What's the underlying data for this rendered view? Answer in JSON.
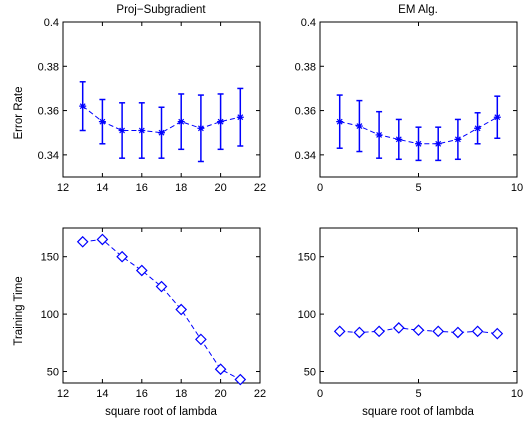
{
  "chart_data": [
    {
      "type": "line",
      "title": "Proj−Subgradient",
      "xlabel": "",
      "ylabel": "Error Rate",
      "xlim": [
        12,
        22
      ],
      "ylim": [
        0.33,
        0.4
      ],
      "xticks": [
        12,
        14,
        16,
        18,
        20,
        22
      ],
      "yticks": [
        0.34,
        0.36,
        0.38,
        0.4
      ],
      "xtick_labels": [
        "12",
        "14",
        "16",
        "18",
        "20",
        "22"
      ],
      "ytick_labels": [
        "0.34",
        "0.36",
        "0.38",
        "0.4"
      ],
      "grid": false,
      "marker": "asterisk",
      "line_style": "dashed",
      "color": "#0000ff",
      "x": [
        13,
        14,
        15,
        16,
        17,
        18,
        19,
        20,
        21
      ],
      "y": [
        0.362,
        0.355,
        0.351,
        0.351,
        0.35,
        0.355,
        0.352,
        0.355,
        0.357
      ],
      "error": [
        0.011,
        0.01,
        0.0125,
        0.0125,
        0.0115,
        0.0125,
        0.015,
        0.0125,
        0.013
      ]
    },
    {
      "type": "line",
      "title": "EM Alg.",
      "xlabel": "",
      "ylabel": "",
      "xlim": [
        0,
        10
      ],
      "ylim": [
        0.33,
        0.4
      ],
      "xticks": [
        0,
        5,
        10
      ],
      "yticks": [
        0.34,
        0.36,
        0.38,
        0.4
      ],
      "xtick_labels": [
        "0",
        "5",
        "10"
      ],
      "ytick_labels": [
        "0.34",
        "0.36",
        "0.38",
        "0.4"
      ],
      "grid": false,
      "marker": "asterisk",
      "line_style": "dashed",
      "color": "#0000ff",
      "x": [
        1,
        2,
        3,
        4,
        5,
        6,
        7,
        8,
        9
      ],
      "y": [
        0.355,
        0.353,
        0.349,
        0.347,
        0.345,
        0.345,
        0.347,
        0.352,
        0.357
      ],
      "error": [
        0.012,
        0.0115,
        0.0105,
        0.009,
        0.0075,
        0.0075,
        0.009,
        0.007,
        0.0095
      ]
    },
    {
      "type": "line",
      "title": "",
      "xlabel": "square root of lambda",
      "ylabel": "Training Time",
      "xlim": [
        12,
        22
      ],
      "ylim": [
        40,
        175
      ],
      "xticks": [
        12,
        14,
        16,
        18,
        20,
        22
      ],
      "yticks": [
        50,
        100,
        150
      ],
      "xtick_labels": [
        "12",
        "14",
        "16",
        "18",
        "20",
        "22"
      ],
      "ytick_labels": [
        "50",
        "100",
        "150"
      ],
      "grid": false,
      "marker": "diamond",
      "line_style": "dashed",
      "color": "#0000ff",
      "x": [
        13,
        14,
        15,
        16,
        17,
        18,
        19,
        20,
        21
      ],
      "y": [
        163,
        165,
        150,
        138,
        124,
        104,
        78,
        52,
        43
      ]
    },
    {
      "type": "line",
      "title": "",
      "xlabel": "square root of lambda",
      "ylabel": "",
      "xlim": [
        0,
        10
      ],
      "ylim": [
        40,
        175
      ],
      "xticks": [
        0,
        5,
        10
      ],
      "yticks": [
        50,
        100,
        150
      ],
      "xtick_labels": [
        "0",
        "5",
        "10"
      ],
      "ytick_labels": [
        "50",
        "100",
        "150"
      ],
      "grid": false,
      "marker": "diamond",
      "line_style": "dashed",
      "color": "#0000ff",
      "x": [
        1,
        2,
        3,
        4,
        5,
        6,
        7,
        8,
        9
      ],
      "y": [
        85,
        84,
        85,
        88,
        86,
        85,
        84,
        85,
        83
      ]
    }
  ]
}
